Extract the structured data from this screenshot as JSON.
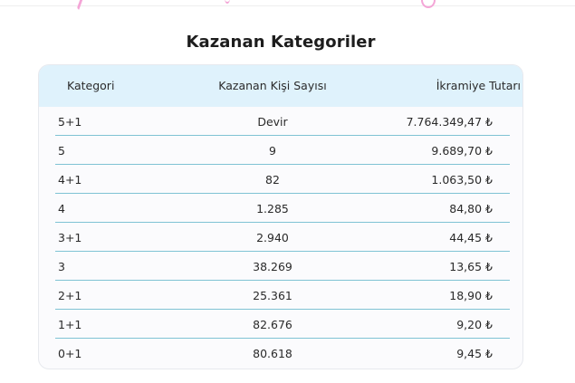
{
  "title": "Kazanan Kategoriler",
  "columns": {
    "category": "Kategori",
    "winners": "Kazanan Kişi Sayısı",
    "prize": "İkramiye Tutarı"
  },
  "rows": [
    {
      "category": "5+1",
      "winners": "Devir",
      "prize": "7.764.349,47 ₺"
    },
    {
      "category": "5",
      "winners": "9",
      "prize": "9.689,70 ₺"
    },
    {
      "category": "4+1",
      "winners": "82",
      "prize": "1.063,50 ₺"
    },
    {
      "category": "4",
      "winners": "1.285",
      "prize": "84,80 ₺"
    },
    {
      "category": "3+1",
      "winners": "2.940",
      "prize": "44,45 ₺"
    },
    {
      "category": "3",
      "winners": "38.269",
      "prize": "13,65 ₺"
    },
    {
      "category": "2+1",
      "winners": "25.361",
      "prize": "18,90 ₺"
    },
    {
      "category": "1+1",
      "winners": "82.676",
      "prize": "9,20 ₺"
    },
    {
      "category": "0+1",
      "winners": "80.618",
      "prize": "9,45 ₺"
    }
  ],
  "colors": {
    "header_bg": "#dff2fc",
    "row_divider": "#7fc3d4",
    "card_bg": "#fbfbfd",
    "decoration": "#f4a6d7"
  }
}
